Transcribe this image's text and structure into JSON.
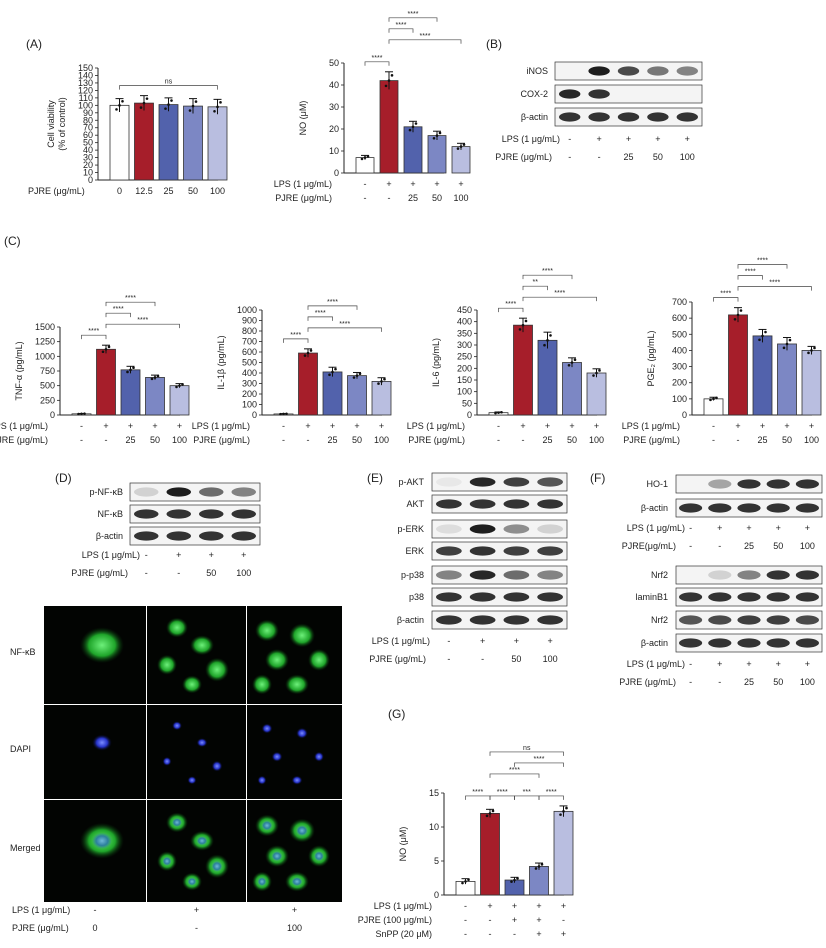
{
  "palette": {
    "control": "#ffffff",
    "lps": "#a61e2a",
    "dark": "#5262ac",
    "mid": "#7c87c4",
    "light": "#b9bee0",
    "green": "#2fbf3a",
    "blue": "#2b3fd8"
  },
  "panels": {
    "A": "(A)",
    "B": "(B)",
    "C": "(C)",
    "D": "(D)",
    "E": "(E)",
    "F": "(F)",
    "G": "(G)"
  },
  "lps_label": "LPS (1 μg/mL)",
  "pjre_label": "PJRE (μg/mL)",
  "pjre_label_nospace": "PJRE(μg/mL)",
  "pjre_label_D_image": "PJRE (μg/mL)",
  "chart_data": [
    {
      "id": "A-viability",
      "type": "bar",
      "ylabel": "Cell viability\n(% of control)",
      "xlabel": "PJRE (μg/mL)",
      "categories": [
        "0",
        "12.5",
        "25",
        "50",
        "100"
      ],
      "values": [
        100,
        103,
        101,
        99,
        98
      ],
      "errors": [
        9,
        10,
        9,
        10,
        10
      ],
      "ylim": [
        0,
        150
      ],
      "yticks": [
        0,
        10,
        20,
        30,
        40,
        50,
        60,
        70,
        80,
        90,
        100,
        110,
        120,
        130,
        140,
        150
      ],
      "significance": [
        "ns"
      ]
    },
    {
      "id": "A-NO",
      "type": "bar",
      "ylabel": "NO (μM)",
      "lps": [
        "-",
        "+",
        "+",
        "+",
        "+"
      ],
      "pjre": [
        "-",
        "-",
        "25",
        "50",
        "100"
      ],
      "values": [
        7,
        42,
        21,
        17,
        12
      ],
      "errors": [
        1,
        4,
        2.5,
        2,
        1.5
      ],
      "ylim": [
        0,
        50
      ],
      "yticks": [
        0,
        10,
        20,
        30,
        40,
        50
      ],
      "significance": [
        "****",
        "****",
        "****",
        "****"
      ]
    },
    {
      "id": "C-TNF",
      "type": "bar",
      "ylabel": "TNF-α (pg/mL)",
      "lps": [
        "-",
        "+",
        "+",
        "+",
        "+"
      ],
      "pjre": [
        "-",
        "-",
        "25",
        "50",
        "100"
      ],
      "values": [
        20,
        1120,
        770,
        640,
        500
      ],
      "errors": [
        5,
        70,
        60,
        40,
        35
      ],
      "ylim": [
        0,
        1500
      ],
      "yticks": [
        0,
        250,
        500,
        750,
        1000,
        1250,
        1500
      ],
      "significance": [
        "****",
        "****",
        "****",
        "****"
      ]
    },
    {
      "id": "C-IL1b",
      "type": "bar",
      "ylabel": "IL-1β (pg/mL)",
      "lps": [
        "-",
        "+",
        "+",
        "+",
        "+"
      ],
      "pjre": [
        "-",
        "-",
        "25",
        "50",
        "100"
      ],
      "values": [
        10,
        590,
        410,
        375,
        320
      ],
      "errors": [
        3,
        40,
        45,
        30,
        35
      ],
      "ylim": [
        0,
        1000
      ],
      "yticks": [
        0,
        100,
        200,
        300,
        400,
        500,
        600,
        700,
        800,
        900,
        1000
      ],
      "significance": [
        "****",
        "****",
        "****",
        "****"
      ]
    },
    {
      "id": "C-IL6",
      "type": "bar",
      "ylabel": "IL-6 (pg/mL)",
      "lps": [
        "-",
        "+",
        "+",
        "+",
        "+"
      ],
      "pjre": [
        "-",
        "-",
        "25",
        "50",
        "100"
      ],
      "values": [
        10,
        385,
        320,
        225,
        180
      ],
      "errors": [
        3,
        30,
        35,
        20,
        18
      ],
      "ylim": [
        0,
        450
      ],
      "yticks": [
        0,
        50,
        100,
        150,
        200,
        250,
        300,
        350,
        400,
        450
      ],
      "significance": [
        "****",
        "**",
        "****",
        "****"
      ]
    },
    {
      "id": "C-PGE2",
      "type": "bar",
      "ylabel": "PGE₂ (pg/mL)",
      "lps": [
        "-",
        "+",
        "+",
        "+",
        "+"
      ],
      "pjre": [
        "-",
        "-",
        "25",
        "50",
        "100"
      ],
      "values": [
        100,
        620,
        490,
        440,
        400
      ],
      "errors": [
        10,
        45,
        40,
        40,
        25
      ],
      "ylim": [
        0,
        700
      ],
      "yticks": [
        0,
        100,
        200,
        300,
        400,
        500,
        600,
        700
      ],
      "significance": [
        "****",
        "****",
        "****",
        "****"
      ]
    },
    {
      "id": "G-NO",
      "type": "bar",
      "ylabel": "NO (μM)",
      "lps": [
        "-",
        "+",
        "+",
        "+",
        "+"
      ],
      "pjre": [
        "-",
        "-",
        "+",
        "+",
        "-"
      ],
      "snpp": [
        "-",
        "-",
        "-",
        "+",
        "+"
      ],
      "values": [
        2,
        12,
        2.2,
        4.2,
        12.3
      ],
      "errors": [
        0.4,
        0.6,
        0.4,
        0.5,
        0.8
      ],
      "ylim": [
        0,
        15
      ],
      "yticks": [
        0,
        5,
        10,
        15
      ],
      "significance": [
        "****",
        "****",
        "***",
        "****",
        "****",
        "****",
        "ns"
      ]
    }
  ],
  "blots": {
    "B": {
      "rows": [
        "iNOS",
        "COX-2",
        "β-actin"
      ],
      "lps": [
        "-",
        "+",
        "+",
        "+",
        "+"
      ],
      "pjre": [
        "-",
        "-",
        "25",
        "50",
        "100"
      ]
    },
    "D": {
      "rows": [
        "p-NF-κB",
        "NF-κB",
        "β-actin"
      ],
      "lps": [
        "-",
        "+",
        "+",
        "+"
      ],
      "pjre": [
        "-",
        "-",
        "50",
        "100"
      ]
    },
    "E": {
      "rows": [
        "p-AKT",
        "AKT",
        "p-ERK",
        "ERK",
        "p-p38",
        "p38",
        "β-actin"
      ],
      "lps": [
        "-",
        "+",
        "+",
        "+"
      ],
      "pjre": [
        "-",
        "-",
        "50",
        "100"
      ]
    },
    "F": {
      "rows_top": [
        "HO-1",
        "β-actin"
      ],
      "rows_bottom": [
        "Nrf2",
        "laminB1",
        "Nrf2",
        "β-actin"
      ],
      "lps": [
        "-",
        "+",
        "+",
        "+",
        "+"
      ],
      "pjre": [
        "-",
        "-",
        "25",
        "50",
        "100"
      ]
    }
  },
  "microscopy": {
    "rows": [
      "NF-κB",
      "DAPI",
      "Merged"
    ],
    "lps": [
      "-",
      "+",
      "+"
    ],
    "pjre": [
      "0",
      "-",
      "100"
    ]
  },
  "G_labels": {
    "lps": "LPS (1 μg/mL)",
    "pjre": "PJRE (100 μg/mL)",
    "snpp": "SnPP (20 μM)"
  }
}
